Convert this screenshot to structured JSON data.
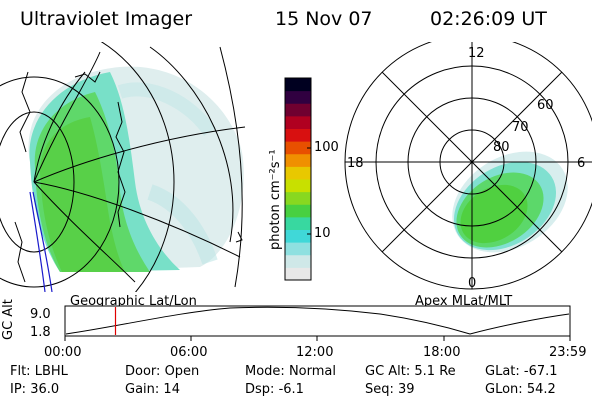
{
  "header": {
    "title": "Ultraviolet Imager",
    "date": "15 Nov 07",
    "time": "02:26:09 UT"
  },
  "colorbar": {
    "unit_label": "photon cm⁻²s⁻¹",
    "tick_100": "100",
    "tick_10": "10",
    "colors": [
      "#e8e8e8",
      "#cfe8e8",
      "#8fe0e0",
      "#40d8d8",
      "#38d8a0",
      "#48d040",
      "#88d820",
      "#c8e000",
      "#e8c800",
      "#f09000",
      "#e85000",
      "#d81010",
      "#b00020",
      "#700030",
      "#300040",
      "#000020"
    ]
  },
  "geo_map": {
    "label": "Geographic Lat/Lon"
  },
  "polar_map": {
    "label": "Apex MLat/MLT",
    "mlt_12": "12",
    "mlt_18": "18",
    "mlt_6": "6",
    "mlt_0": "0",
    "lat_60": "60",
    "lat_70": "70",
    "lat_80": "80"
  },
  "altitude_plot": {
    "ylabel": "GC Alt",
    "ytick_top": "9.0",
    "ytick_bottom": "1.8",
    "xticks": [
      "00:00",
      "06:00",
      "12:00",
      "18:00",
      "23:59"
    ],
    "current_time_fraction": 0.1
  },
  "info": {
    "flt_label": "Flt:",
    "flt_value": "LBHL",
    "ip_label": "IP:",
    "ip_value": "36.0",
    "door_label": "Door:",
    "door_value": "Open",
    "gain_label": "Gain:",
    "gain_value": "14",
    "mode_label": "Mode:",
    "mode_value": "Normal",
    "dsp_label": "Dsp:",
    "dsp_value": "-6.1",
    "gcalt_label": "GC Alt:",
    "gcalt_value": "5.1 Re",
    "seq_label": "Seq:",
    "seq_value": "39",
    "glat_label": "GLat:",
    "glat_value": "-67.1",
    "glon_label": "GLon:",
    "glon_value": "54.2"
  }
}
